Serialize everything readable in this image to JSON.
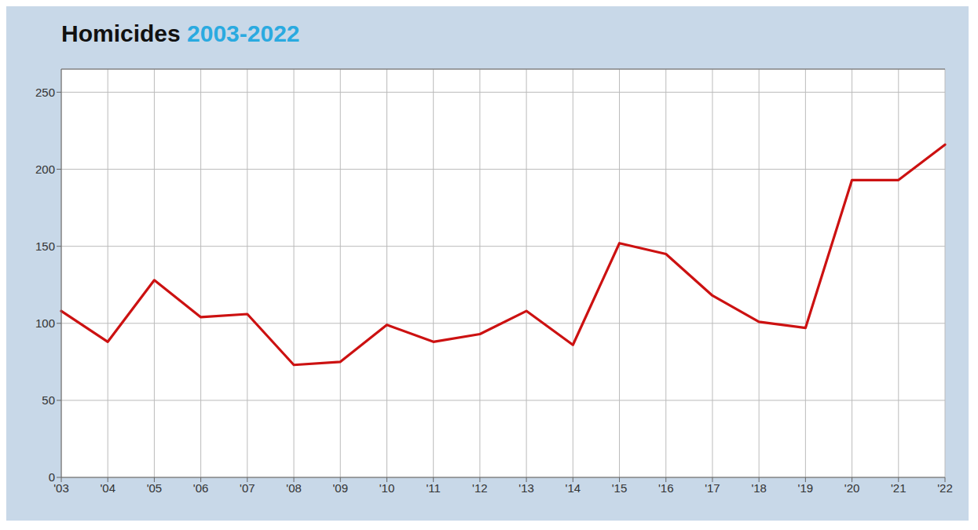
{
  "chart_data": {
    "type": "line",
    "title": "Homicides 2003-2022",
    "categories": [
      "'03",
      "'04",
      "'05",
      "'06",
      "'07",
      "'08",
      "'09",
      "'10",
      "'11",
      "'12",
      "'13",
      "'14",
      "'15",
      "'16",
      "'17",
      "'18",
      "'19",
      "'20",
      "'21",
      "'22"
    ],
    "values": [
      108,
      88,
      128,
      104,
      106,
      73,
      75,
      99,
      88,
      93,
      108,
      86,
      152,
      145,
      118,
      101,
      97,
      193,
      193,
      216
    ],
    "color": "#cc1111",
    "ylim": [
      0,
      265
    ],
    "yticks": [
      0,
      50,
      100,
      150,
      200,
      250
    ],
    "grid": true
  }
}
